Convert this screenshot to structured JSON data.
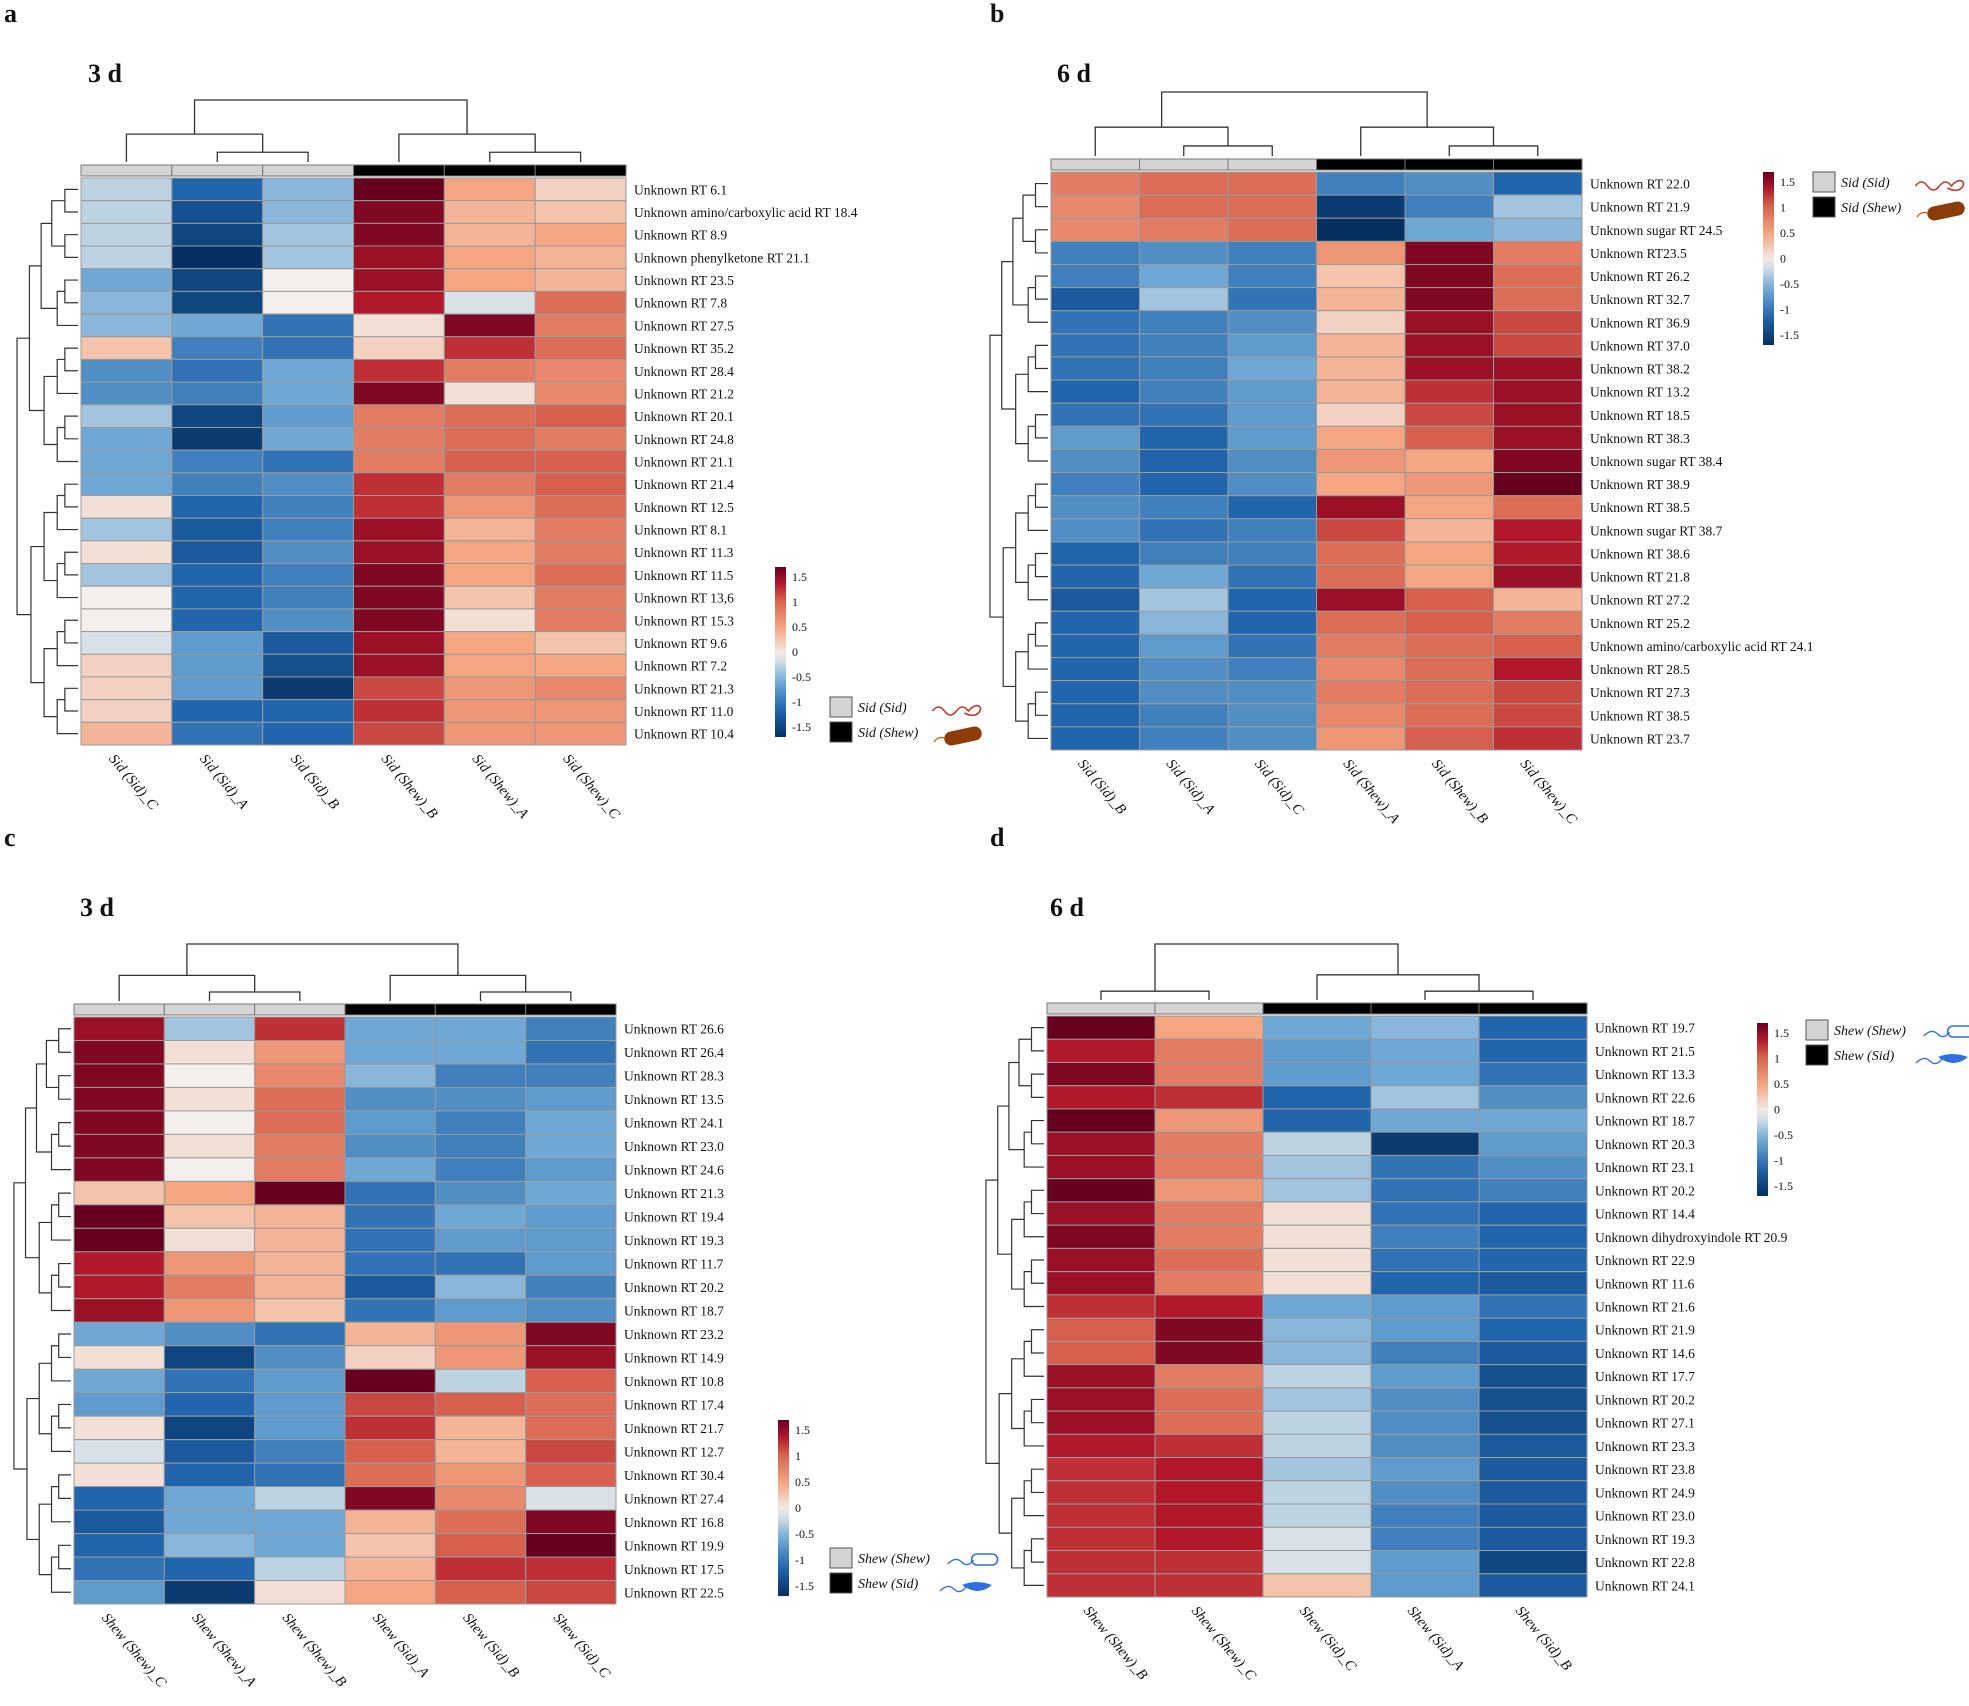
{
  "panels": [
    {
      "letter": "a",
      "day": "3 d",
      "legend_labels": [
        "Sid (Sid)",
        "Sid (Shew)"
      ],
      "legend_organisms": [
        "squiggle-red",
        "rod-brown"
      ]
    },
    {
      "letter": "b",
      "day": "6 d",
      "legend_labels": [
        "Sid (Sid)",
        "Sid (Shew)"
      ],
      "legend_organisms": [
        "squiggle-red",
        "rod-brown"
      ]
    },
    {
      "letter": "c",
      "day": "3 d",
      "legend_labels": [
        "Shew (Shew)",
        "Shew (Sid)"
      ],
      "legend_organisms": [
        "outline-blue",
        "rod-blue"
      ]
    },
    {
      "letter": "d",
      "day": "6 d",
      "legend_labels": [
        "Shew (Shew)",
        "Shew (Sid)"
      ],
      "legend_organisms": [
        "outline-blue",
        "rod-blue"
      ]
    }
  ],
  "colorbar_ticks": [
    "1.5",
    "1",
    "0.5",
    "0",
    "-0.5",
    "-1",
    "-1.5"
  ],
  "colors": {
    "low": "#053061",
    "mid": "#f7f7f7",
    "high": "#67001f",
    "group1_bar": "#d4d4d4",
    "group2_bar": "#000000"
  },
  "chart_data": [
    {
      "type": "heatmap",
      "panel": "a",
      "scale": [
        -1.5,
        1.5
      ],
      "columns": [
        "Sid (Sid)_C",
        "Sid (Sid)_A",
        "Sid (Sid)_B",
        "Sid (Shew)_B",
        "Sid (Shew)_A",
        "Sid (Shew)_C"
      ],
      "column_groups": [
        1,
        1,
        1,
        2,
        2,
        2
      ],
      "rows": [
        "Unknown RT 6.1",
        "Unknown amino/carboxylic acid RT 18.4",
        "Unknown RT 8.9",
        "Unknown phenylketone RT 21.1",
        "Unknown RT 23.5",
        "Unknown  RT 7.8",
        "Unknown RT 27.5",
        "Unknown RT 35.2",
        "Unknown RT 28.4",
        "Unknown RT 21.2",
        "Unknown RT 20.1",
        "Unknown RT 24.8",
        "Unknown RT 21.1",
        "Unknown RT 21.4",
        "Unknown RT 12.5",
        "Unknown RT 8.1",
        "Unknown RT 11.3",
        "Unknown RT 11.5",
        "Unknown RT 13,6",
        "Unknown RT 15.3",
        "Unknown RT 9.6",
        "Unknown RT 7.2",
        "Unknown RT 21.3",
        "Unknown RT 11.0",
        "Unknown RT 10.4"
      ],
      "values": [
        [
          -0.2,
          -1.0,
          -0.4,
          1.6,
          0.5,
          0.2
        ],
        [
          -0.2,
          -1.2,
          -0.4,
          1.5,
          0.4,
          0.3
        ],
        [
          -0.2,
          -1.3,
          -0.3,
          1.5,
          0.4,
          0.5
        ],
        [
          -0.2,
          -1.6,
          -0.3,
          1.4,
          0.5,
          0.4
        ],
        [
          -0.5,
          -1.3,
          0.0,
          1.4,
          0.5,
          0.4
        ],
        [
          -0.4,
          -1.3,
          0.0,
          1.3,
          -0.1,
          0.9
        ],
        [
          -0.4,
          -0.5,
          -0.9,
          0.1,
          1.5,
          0.8
        ],
        [
          0.3,
          -0.8,
          -0.9,
          0.2,
          1.2,
          0.9
        ],
        [
          -0.7,
          -0.9,
          -0.5,
          1.2,
          0.8,
          0.7
        ],
        [
          -0.7,
          -0.8,
          -0.5,
          1.5,
          0.1,
          0.7
        ],
        [
          -0.3,
          -1.3,
          -0.6,
          0.8,
          0.9,
          1.0
        ],
        [
          -0.5,
          -1.4,
          -0.5,
          0.8,
          0.9,
          0.8
        ],
        [
          -0.5,
          -0.8,
          -0.9,
          0.8,
          1.0,
          1.0
        ],
        [
          -0.5,
          -0.8,
          -0.7,
          1.2,
          0.8,
          1.0
        ],
        [
          0.1,
          -1.0,
          -0.8,
          1.2,
          0.6,
          0.9
        ],
        [
          -0.3,
          -1.1,
          -0.8,
          1.4,
          0.4,
          0.8
        ],
        [
          0.1,
          -1.1,
          -0.7,
          1.4,
          0.5,
          0.8
        ],
        [
          -0.3,
          -1.0,
          -0.8,
          1.5,
          0.5,
          0.9
        ],
        [
          0.0,
          -1.0,
          -0.8,
          1.5,
          0.3,
          0.8
        ],
        [
          0.0,
          -1.0,
          -0.7,
          1.5,
          0.1,
          0.8
        ],
        [
          -0.1,
          -0.6,
          -1.1,
          1.4,
          0.5,
          0.3
        ],
        [
          0.2,
          -0.6,
          -1.2,
          1.4,
          0.5,
          0.5
        ],
        [
          0.2,
          -0.6,
          -1.4,
          1.1,
          0.6,
          0.7
        ],
        [
          0.2,
          -1.0,
          -1.0,
          1.2,
          0.6,
          0.6
        ],
        [
          0.4,
          -0.9,
          -1.0,
          1.1,
          0.6,
          0.6
        ]
      ]
    },
    {
      "type": "heatmap",
      "panel": "b",
      "scale": [
        -1.5,
        1.5
      ],
      "columns": [
        "Sid (Sid)_B",
        "Sid (Sid)_A",
        "Sid (Sid)_C",
        "Sid (Shew)_A",
        "Sid (Shew)_B",
        "Sid (Shew)_C"
      ],
      "column_groups": [
        1,
        1,
        1,
        2,
        2,
        2
      ],
      "rows": [
        "Unknown RT 22.0",
        "Unknown RT 21.9",
        "Unknown sugar RT 24.5",
        "Unknown RT23.5",
        "Unknown RT 26.2",
        "Unknown  RT 32.7",
        "Unknown RT 36.9",
        "Unknown RT 37.0",
        "Unknown RT 38.2",
        "Unknown RT 13.2",
        "Unknown RT 18.5",
        "Unknown RT 38.3",
        "Unknown sugar RT 38.4",
        "Unknown RT 38.9",
        "Unknown RT 38.5",
        "Unknown sugar RT 38.7",
        "Unknown RT 38.6",
        "Unknown RT 21.8",
        "Unknown RT 27.2",
        "Unknown RT 25.2",
        "Unknown amino/carboxylic acid RT 24.1",
        "Unknown RT 28.5",
        "Unknown RT 27.3",
        "Unknown RT 38.5",
        "Unknown RT 23.7"
      ],
      "values": [
        [
          0.8,
          0.9,
          0.9,
          -0.8,
          -0.7,
          -1.0
        ],
        [
          0.7,
          0.9,
          0.9,
          -1.4,
          -0.8,
          -0.3
        ],
        [
          0.7,
          0.8,
          0.9,
          -1.6,
          -0.5,
          -0.4
        ],
        [
          -0.8,
          -0.7,
          -0.8,
          0.6,
          1.5,
          0.8
        ],
        [
          -0.8,
          -0.5,
          -0.8,
          0.3,
          1.5,
          0.9
        ],
        [
          -1.1,
          -0.3,
          -0.9,
          0.4,
          1.5,
          0.9
        ],
        [
          -0.9,
          -0.8,
          -0.7,
          0.2,
          1.4,
          1.1
        ],
        [
          -0.9,
          -0.8,
          -0.6,
          0.4,
          1.4,
          1.1
        ],
        [
          -0.9,
          -0.8,
          -0.5,
          0.4,
          1.4,
          1.4
        ],
        [
          -1.0,
          -0.8,
          -0.6,
          0.4,
          1.2,
          1.4
        ],
        [
          -0.9,
          -0.9,
          -0.6,
          0.2,
          1.1,
          1.4
        ],
        [
          -0.6,
          -1.0,
          -0.6,
          0.5,
          1.0,
          1.4
        ],
        [
          -0.7,
          -1.0,
          -0.7,
          0.6,
          0.5,
          1.5
        ],
        [
          -0.8,
          -1.0,
          -0.7,
          0.5,
          0.6,
          1.6
        ],
        [
          -0.7,
          -0.8,
          -1.0,
          1.4,
          0.5,
          0.9
        ],
        [
          -0.7,
          -0.9,
          -0.8,
          1.1,
          0.4,
          1.3
        ],
        [
          -1.0,
          -0.8,
          -0.8,
          0.9,
          0.5,
          1.3
        ],
        [
          -1.0,
          -0.5,
          -0.9,
          0.9,
          0.5,
          1.4
        ],
        [
          -1.1,
          -0.3,
          -1.0,
          1.4,
          1.0,
          0.4
        ],
        [
          -1.0,
          -0.4,
          -1.0,
          0.9,
          1.0,
          0.8
        ],
        [
          -1.0,
          -0.6,
          -0.9,
          0.8,
          0.9,
          1.0
        ],
        [
          -1.0,
          -0.7,
          -0.8,
          0.7,
          0.9,
          1.3
        ],
        [
          -1.0,
          -0.7,
          -0.7,
          0.8,
          0.9,
          1.1
        ],
        [
          -1.0,
          -0.8,
          -0.7,
          0.7,
          0.9,
          1.1
        ],
        [
          -1.0,
          -0.8,
          -0.7,
          0.6,
          1.0,
          1.2
        ]
      ]
    },
    {
      "type": "heatmap",
      "panel": "c",
      "scale": [
        -1.5,
        1.5
      ],
      "columns": [
        "Shew (Shew)_C",
        "Shew (Shew)_A",
        "Shew (Shew)_B",
        "Shew (Sid)_A",
        "Shew (Sid)_B",
        "Shew (Sid)_C"
      ],
      "column_groups": [
        1,
        1,
        1,
        2,
        2,
        2
      ],
      "rows": [
        "Unknown RT 26.6",
        "Unknown RT 26.4",
        "Unknown RT 28.3",
        "Unknown RT 13.5",
        "Unknown RT 24.1",
        "Unknown RT 23.0",
        "Unknown RT 24.6",
        "Unknown RT 21.3",
        "Unknown RT 19.4",
        "Unknown RT 19.3",
        "Unknown RT 11.7",
        "Unknown RT 20.2",
        "Unknown RT 18.7",
        "Unknown RT 23.2",
        "Unknown RT 14.9",
        "Unknown RT 10.8",
        "Unknown RT 17.4",
        "Unknown RT 21.7",
        "Unknown RT 12.7",
        "Unknown RT 30.4",
        "Unknown RT 27.4",
        "Unknown RT 16.8",
        "Unknown RT 19.9",
        "Unknown RT 17.5",
        "Unknown RT 22.5"
      ],
      "values": [
        [
          1.4,
          -0.3,
          1.2,
          -0.5,
          -0.5,
          -0.8
        ],
        [
          1.5,
          0.1,
          0.6,
          -0.5,
          -0.5,
          -0.9
        ],
        [
          1.5,
          0.0,
          0.7,
          -0.4,
          -0.8,
          -0.8
        ],
        [
          1.5,
          0.1,
          0.9,
          -0.7,
          -0.7,
          -0.6
        ],
        [
          1.5,
          0.0,
          0.9,
          -0.6,
          -0.8,
          -0.5
        ],
        [
          1.5,
          0.1,
          0.8,
          -0.7,
          -0.8,
          -0.5
        ],
        [
          1.5,
          0.0,
          0.8,
          -0.5,
          -0.8,
          -0.6
        ],
        [
          0.3,
          0.5,
          1.6,
          -0.9,
          -0.7,
          -0.5
        ],
        [
          1.6,
          0.3,
          0.4,
          -0.9,
          -0.5,
          -0.6
        ],
        [
          1.6,
          0.1,
          0.4,
          -0.9,
          -0.6,
          -0.6
        ],
        [
          1.3,
          0.6,
          0.4,
          -0.9,
          -0.9,
          -0.6
        ],
        [
          1.3,
          0.8,
          0.4,
          -1.1,
          -0.4,
          -0.8
        ],
        [
          1.4,
          0.6,
          0.3,
          -0.9,
          -0.6,
          -0.7
        ],
        [
          -0.5,
          -0.7,
          -0.9,
          0.4,
          0.6,
          1.5
        ],
        [
          0.1,
          -1.3,
          -0.7,
          0.2,
          0.6,
          1.4
        ],
        [
          -0.5,
          -0.9,
          -0.6,
          1.6,
          -0.2,
          1.0
        ],
        [
          -0.6,
          -1.0,
          -0.6,
          1.1,
          1.0,
          0.9
        ],
        [
          0.1,
          -1.3,
          -0.6,
          1.2,
          0.4,
          0.9
        ],
        [
          -0.1,
          -1.1,
          -0.8,
          1.0,
          0.4,
          1.1
        ],
        [
          0.1,
          -1.0,
          -0.9,
          0.9,
          0.6,
          1.0
        ],
        [
          -1.0,
          -0.5,
          -0.2,
          1.5,
          0.7,
          -0.1
        ],
        [
          -1.1,
          -0.5,
          -0.5,
          0.4,
          0.9,
          1.5
        ],
        [
          -1.0,
          -0.4,
          -0.5,
          0.3,
          1.0,
          1.6
        ],
        [
          -0.9,
          -1.0,
          -0.2,
          0.4,
          1.2,
          1.2
        ],
        [
          -0.6,
          -1.4,
          0.1,
          0.5,
          1.0,
          1.1
        ]
      ]
    },
    {
      "type": "heatmap",
      "panel": "d",
      "scale": [
        -1.5,
        1.5
      ],
      "columns": [
        "Shew (Shew)_B",
        "Shew (Shew)_C",
        "Shew (Sid)_C",
        "Shew (Sid)_A",
        "Shew (Sid)_B"
      ],
      "column_groups": [
        1,
        1,
        2,
        2,
        2
      ],
      "rows": [
        "Unknown RT 19.7",
        "Unknown RT 21.5",
        "Unknown RT 13.3",
        "Unknown RT 22.6",
        "Unknown RT 18.7",
        "Unknown  RT 20.3",
        "Unknown RT 23.1",
        "Unknown RT 20.2",
        "Unknown RT 14.4",
        "Unknown dihydroxyindole RT 20.9",
        "Unknown RT 22.9",
        "Unknown RT 11.6",
        "Unknown RT 21.6",
        "Unknown RT 21.9",
        "Unknown RT 14.6",
        "Unknown RT 17.7",
        "Unknown RT 20.2",
        "Unknown RT 27.1",
        "Unknown RT 23.3",
        "Unknown RT 23.8",
        "Unknown RT 24.9",
        "Unknown RT 23.0",
        "Unknown RT 19.3",
        "Unknown RT 22.8",
        "Unknown RT 24.1"
      ],
      "values": [
        [
          1.6,
          0.5,
          -0.5,
          -0.4,
          -1.0
        ],
        [
          1.3,
          0.8,
          -0.6,
          -0.5,
          -1.0
        ],
        [
          1.5,
          0.8,
          -0.6,
          -0.5,
          -0.9
        ],
        [
          1.3,
          1.2,
          -1.0,
          -0.3,
          -0.7
        ],
        [
          1.6,
          0.6,
          -1.0,
          -0.5,
          -0.5
        ],
        [
          1.4,
          0.8,
          -0.2,
          -1.4,
          -0.6
        ],
        [
          1.4,
          0.8,
          -0.3,
          -0.9,
          -0.7
        ],
        [
          1.6,
          0.6,
          -0.3,
          -0.9,
          -0.8
        ],
        [
          1.4,
          0.8,
          0.1,
          -0.9,
          -1.0
        ],
        [
          1.5,
          0.8,
          0.1,
          -0.8,
          -1.0
        ],
        [
          1.4,
          0.9,
          0.1,
          -0.9,
          -1.0
        ],
        [
          1.4,
          0.8,
          0.1,
          -1.0,
          -1.1
        ],
        [
          1.2,
          1.3,
          -0.5,
          -0.6,
          -0.9
        ],
        [
          1.0,
          1.5,
          -0.4,
          -0.6,
          -1.0
        ],
        [
          1.0,
          1.5,
          -0.4,
          -0.8,
          -1.1
        ],
        [
          1.4,
          0.8,
          -0.2,
          -0.6,
          -1.2
        ],
        [
          1.4,
          0.9,
          -0.3,
          -0.7,
          -1.2
        ],
        [
          1.4,
          0.9,
          -0.2,
          -0.7,
          -1.2
        ],
        [
          1.3,
          1.2,
          -0.2,
          -0.7,
          -1.1
        ],
        [
          1.2,
          1.3,
          -0.3,
          -0.6,
          -1.1
        ],
        [
          1.2,
          1.3,
          -0.2,
          -0.7,
          -1.1
        ],
        [
          1.2,
          1.3,
          -0.2,
          -0.8,
          -1.1
        ],
        [
          1.2,
          1.3,
          -0.1,
          -0.8,
          -1.1
        ],
        [
          1.2,
          1.2,
          -0.1,
          -0.6,
          -1.3
        ],
        [
          1.2,
          1.2,
          0.3,
          -0.6,
          -1.1
        ]
      ]
    }
  ]
}
